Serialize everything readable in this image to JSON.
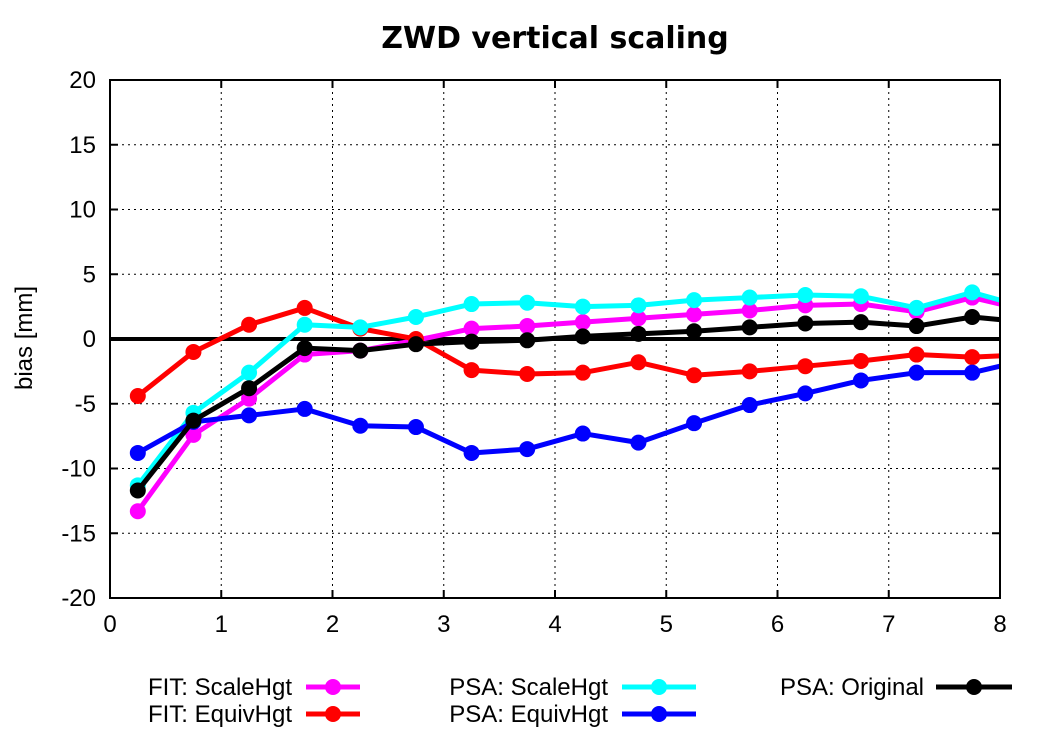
{
  "chart_data": {
    "type": "line",
    "title": "ZWD vertical scaling",
    "xlabel": "",
    "ylabel": "bias [mm]",
    "xlim": [
      0,
      8
    ],
    "ylim": [
      -20,
      20
    ],
    "xticks": [
      0,
      1,
      2,
      3,
      4,
      5,
      6,
      7,
      8
    ],
    "yticks": [
      -20,
      -15,
      -10,
      -5,
      0,
      5,
      10,
      15,
      20
    ],
    "grid": true,
    "x": [
      0.25,
      0.75,
      1.25,
      1.75,
      2.25,
      2.75,
      3.25,
      3.75,
      4.25,
      4.75,
      5.25,
      5.75,
      6.25,
      6.75,
      7.25,
      7.75,
      8.0
    ],
    "series": [
      {
        "name": "FIT: ScaleHgt",
        "color": "#ff00ff",
        "values": [
          -13.3,
          -7.4,
          -4.6,
          -1.2,
          -0.9,
          -0.1,
          0.8,
          1.0,
          1.3,
          1.6,
          1.9,
          2.2,
          2.6,
          2.7,
          2.1,
          3.2,
          2.7
        ]
      },
      {
        "name": "FIT: EquivHgt",
        "color": "#ff0000",
        "values": [
          -4.4,
          -1.0,
          1.1,
          2.4,
          0.8,
          0.0,
          -2.4,
          -2.7,
          -2.6,
          -1.8,
          -2.8,
          -2.5,
          -2.1,
          -1.7,
          -1.2,
          -1.4,
          -1.3
        ]
      },
      {
        "name": "PSA: ScaleHgt",
        "color": "#00ffff",
        "values": [
          -11.3,
          -5.7,
          -2.6,
          1.1,
          0.9,
          1.7,
          2.7,
          2.8,
          2.5,
          2.6,
          3.0,
          3.2,
          3.4,
          3.3,
          2.4,
          3.6,
          3.0
        ]
      },
      {
        "name": "PSA: EquivHgt",
        "color": "#0000ff",
        "values": [
          -8.8,
          -6.4,
          -5.9,
          -5.4,
          -6.7,
          -6.8,
          -8.8,
          -8.5,
          -7.3,
          -8.0,
          -6.5,
          -5.1,
          -4.2,
          -3.2,
          -2.6,
          -2.6,
          -2.1
        ]
      },
      {
        "name": "PSA: Original",
        "color": "#000000",
        "values": [
          -11.7,
          -6.3,
          -3.8,
          -0.7,
          -0.9,
          -0.4,
          -0.2,
          -0.1,
          0.2,
          0.4,
          0.6,
          0.9,
          1.2,
          1.3,
          1.0,
          1.7,
          1.5
        ]
      }
    ],
    "zero_line_color": "#000000",
    "legend_position": "bottom"
  }
}
